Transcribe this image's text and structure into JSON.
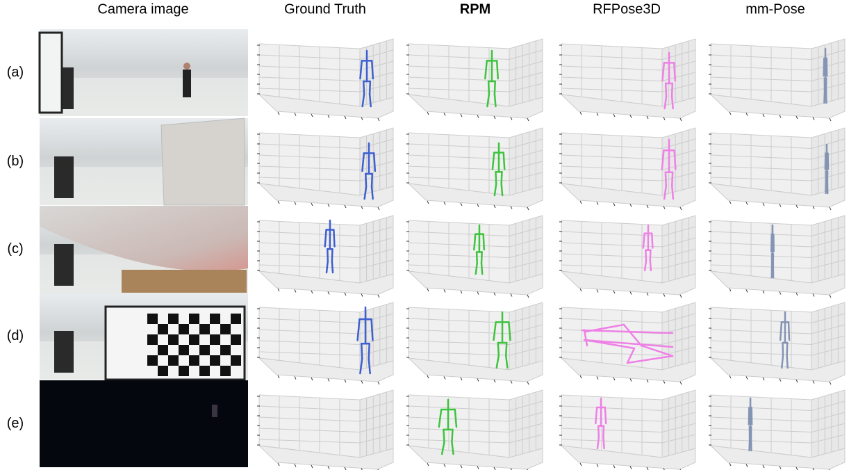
{
  "columns": [
    "Camera image",
    "Ground Truth",
    "RPM",
    "RFPose3D",
    "mm-Pose"
  ],
  "rows": [
    "(a)",
    "(b)",
    "(c)",
    "(d)",
    "(e)"
  ]
}
